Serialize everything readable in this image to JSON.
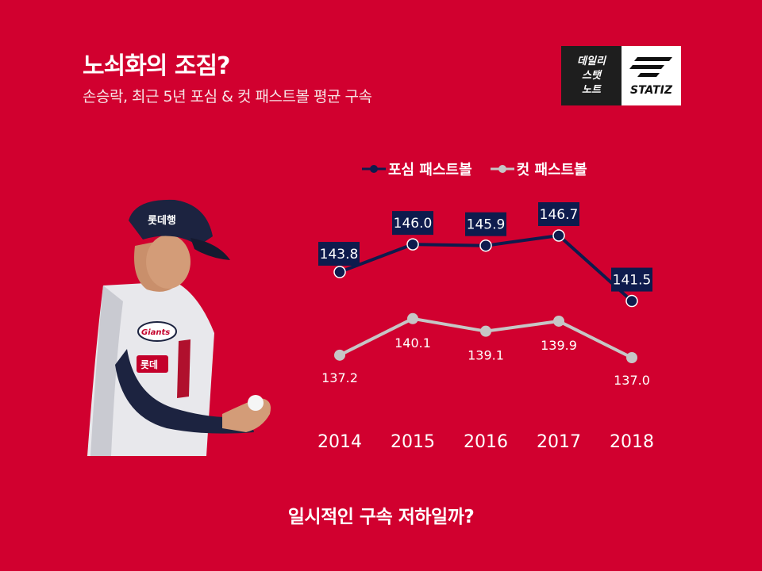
{
  "header": {
    "title": "노쇠화의 조짐?",
    "subtitle": "손승락, 최근 5년 포심 & 컷 패스트볼 평균 구속"
  },
  "logo": {
    "left_lines": [
      "데일리",
      "스탯",
      "노트"
    ],
    "brand": "STATIZ"
  },
  "player_image": {
    "cap_text": "롯데행",
    "jersey_text": "Giants",
    "sleeve_text": "롯데"
  },
  "colors": {
    "background": "#d1002f",
    "fourseam": "#0e1b4d",
    "cutter": "#c6c6c6",
    "text": "#ffffff"
  },
  "chart_data": {
    "type": "line",
    "categories": [
      "2014",
      "2015",
      "2016",
      "2017",
      "2018"
    ],
    "series": [
      {
        "name": "포심 패스트볼",
        "values": [
          143.8,
          146.0,
          145.9,
          146.7,
          141.5
        ]
      },
      {
        "name": "컷 패스트볼",
        "values": [
          137.2,
          140.1,
          139.1,
          139.9,
          137.0
        ]
      }
    ],
    "title": "",
    "xlabel": "",
    "ylabel": "",
    "legend": "top",
    "grid": false
  },
  "footer": {
    "caption": "일시적인 구속 저하일까?"
  }
}
